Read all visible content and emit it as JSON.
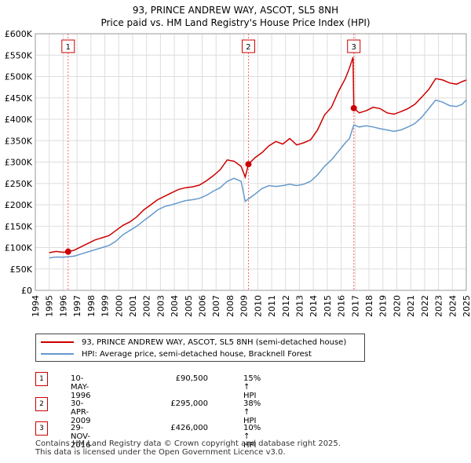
{
  "title_line1": "93, PRINCE ANDREW WAY, ASCOT, SL5 8NH",
  "title_line2": "Price paid vs. HM Land Registry's House Price Index (HPI)",
  "colors": {
    "property": "#cc0000",
    "hpi": "#6699cc",
    "marker_line": "#ff6666",
    "grid": "#dddddd",
    "box": "#cc0000"
  },
  "legend": {
    "property_label": "93, PRINCE ANDREW WAY, ASCOT, SL5 8NH (semi-detached house)",
    "hpi_label": "HPI: Average price, semi-detached house, Bracknell Forest"
  },
  "transactions": [
    {
      "num": "1",
      "date": "10-MAY-1996",
      "price": "£90,500",
      "hpi": "15% ↑ HPI"
    },
    {
      "num": "2",
      "date": "30-APR-2009",
      "price": "£295,000",
      "hpi": "38% ↑ HPI"
    },
    {
      "num": "3",
      "date": "29-NOV-2016",
      "price": "£426,000",
      "hpi": "10% ↑ HPI"
    }
  ],
  "footer": {
    "line1": "Contains HM Land Registry data © Crown copyright and database right 2025.",
    "line2": "This data is licensed under the Open Government Licence v3.0."
  },
  "chart_data": {
    "type": "line",
    "xlim": [
      1994,
      2025
    ],
    "ylim": [
      0,
      600000
    ],
    "xticks": [
      1994,
      1995,
      1996,
      1997,
      1998,
      1999,
      2000,
      2001,
      2002,
      2003,
      2004,
      2005,
      2006,
      2007,
      2008,
      2009,
      2010,
      2011,
      2012,
      2013,
      2014,
      2015,
      2016,
      2017,
      2018,
      2019,
      2020,
      2021,
      2022,
      2023,
      2024,
      2025
    ],
    "yticks": [
      {
        "v": 0,
        "label": "£0"
      },
      {
        "v": 50000,
        "label": "£50K"
      },
      {
        "v": 100000,
        "label": "£100K"
      },
      {
        "v": 150000,
        "label": "£150K"
      },
      {
        "v": 200000,
        "label": "£200K"
      },
      {
        "v": 250000,
        "label": "£250K"
      },
      {
        "v": 300000,
        "label": "£300K"
      },
      {
        "v": 350000,
        "label": "£350K"
      },
      {
        "v": 400000,
        "label": "£400K"
      },
      {
        "v": 450000,
        "label": "£450K"
      },
      {
        "v": 500000,
        "label": "£500K"
      },
      {
        "v": 550000,
        "label": "£550K"
      },
      {
        "v": 600000,
        "label": "£600K"
      }
    ],
    "sales": [
      {
        "label": "1",
        "x": 1996.36,
        "y": 90500
      },
      {
        "label": "2",
        "x": 2009.33,
        "y": 295000
      },
      {
        "label": "3",
        "x": 2016.91,
        "y": 426000
      }
    ],
    "series": [
      {
        "name": "93, PRINCE ANDREW WAY, ASCOT, SL5 8NH (semi-detached house)",
        "points": [
          [
            1995.0,
            88000
          ],
          [
            1995.5,
            91000
          ],
          [
            1996.0,
            89000
          ],
          [
            1996.36,
            90500
          ],
          [
            1996.8,
            94000
          ],
          [
            1997.3,
            102000
          ],
          [
            1997.8,
            110000
          ],
          [
            1998.3,
            118000
          ],
          [
            1998.8,
            123000
          ],
          [
            1999.3,
            128000
          ],
          [
            1999.8,
            140000
          ],
          [
            2000.3,
            152000
          ],
          [
            2000.8,
            160000
          ],
          [
            2001.3,
            172000
          ],
          [
            2001.8,
            188000
          ],
          [
            2002.3,
            200000
          ],
          [
            2002.8,
            212000
          ],
          [
            2003.3,
            220000
          ],
          [
            2003.8,
            228000
          ],
          [
            2004.3,
            236000
          ],
          [
            2004.8,
            240000
          ],
          [
            2005.3,
            242000
          ],
          [
            2005.8,
            246000
          ],
          [
            2006.3,
            256000
          ],
          [
            2006.8,
            268000
          ],
          [
            2007.3,
            282000
          ],
          [
            2007.8,
            305000
          ],
          [
            2008.3,
            302000
          ],
          [
            2008.8,
            290000
          ],
          [
            2009.1,
            265000
          ],
          [
            2009.33,
            295000
          ],
          [
            2009.8,
            310000
          ],
          [
            2010.3,
            322000
          ],
          [
            2010.8,
            338000
          ],
          [
            2011.3,
            348000
          ],
          [
            2011.8,
            342000
          ],
          [
            2012.3,
            355000
          ],
          [
            2012.8,
            340000
          ],
          [
            2013.3,
            345000
          ],
          [
            2013.8,
            352000
          ],
          [
            2014.3,
            375000
          ],
          [
            2014.8,
            410000
          ],
          [
            2015.3,
            428000
          ],
          [
            2015.8,
            465000
          ],
          [
            2016.3,
            495000
          ],
          [
            2016.6,
            520000
          ],
          [
            2016.85,
            545000
          ],
          [
            2016.91,
            426000
          ],
          [
            2017.3,
            415000
          ],
          [
            2017.8,
            420000
          ],
          [
            2018.3,
            428000
          ],
          [
            2018.8,
            425000
          ],
          [
            2019.3,
            415000
          ],
          [
            2019.8,
            412000
          ],
          [
            2020.3,
            418000
          ],
          [
            2020.8,
            425000
          ],
          [
            2021.3,
            435000
          ],
          [
            2021.8,
            452000
          ],
          [
            2022.3,
            470000
          ],
          [
            2022.8,
            495000
          ],
          [
            2023.3,
            492000
          ],
          [
            2023.8,
            485000
          ],
          [
            2024.3,
            482000
          ],
          [
            2024.7,
            488000
          ],
          [
            2025.0,
            492000
          ]
        ]
      },
      {
        "name": "HPI: Average price, semi-detached house, Bracknell Forest",
        "points": [
          [
            1995.0,
            76000
          ],
          [
            1995.5,
            78000
          ],
          [
            1996.0,
            77500
          ],
          [
            1996.36,
            78700
          ],
          [
            1996.8,
            80000
          ],
          [
            1997.3,
            85000
          ],
          [
            1997.8,
            90000
          ],
          [
            1998.3,
            95000
          ],
          [
            1998.8,
            100000
          ],
          [
            1999.3,
            105000
          ],
          [
            1999.8,
            115000
          ],
          [
            2000.3,
            130000
          ],
          [
            2000.8,
            140000
          ],
          [
            2001.3,
            150000
          ],
          [
            2001.8,
            163000
          ],
          [
            2002.3,
            175000
          ],
          [
            2002.8,
            188000
          ],
          [
            2003.3,
            196000
          ],
          [
            2003.8,
            200000
          ],
          [
            2004.3,
            205000
          ],
          [
            2004.8,
            210000
          ],
          [
            2005.3,
            212000
          ],
          [
            2005.8,
            215000
          ],
          [
            2006.3,
            222000
          ],
          [
            2006.8,
            232000
          ],
          [
            2007.3,
            240000
          ],
          [
            2007.8,
            255000
          ],
          [
            2008.3,
            262000
          ],
          [
            2008.8,
            255000
          ],
          [
            2009.1,
            208000
          ],
          [
            2009.33,
            213800
          ],
          [
            2009.8,
            225000
          ],
          [
            2010.3,
            238000
          ],
          [
            2010.8,
            245000
          ],
          [
            2011.3,
            243000
          ],
          [
            2011.8,
            245000
          ],
          [
            2012.3,
            248000
          ],
          [
            2012.8,
            245000
          ],
          [
            2013.3,
            248000
          ],
          [
            2013.8,
            255000
          ],
          [
            2014.3,
            270000
          ],
          [
            2014.8,
            290000
          ],
          [
            2015.3,
            305000
          ],
          [
            2015.8,
            325000
          ],
          [
            2016.3,
            345000
          ],
          [
            2016.6,
            355000
          ],
          [
            2016.91,
            387000
          ],
          [
            2017.3,
            382000
          ],
          [
            2017.8,
            385000
          ],
          [
            2018.3,
            382000
          ],
          [
            2018.8,
            378000
          ],
          [
            2019.3,
            375000
          ],
          [
            2019.8,
            372000
          ],
          [
            2020.3,
            375000
          ],
          [
            2020.8,
            382000
          ],
          [
            2021.3,
            390000
          ],
          [
            2021.8,
            405000
          ],
          [
            2022.3,
            425000
          ],
          [
            2022.8,
            445000
          ],
          [
            2023.3,
            440000
          ],
          [
            2023.8,
            432000
          ],
          [
            2024.3,
            430000
          ],
          [
            2024.7,
            435000
          ],
          [
            2025.0,
            445000
          ]
        ]
      }
    ]
  }
}
